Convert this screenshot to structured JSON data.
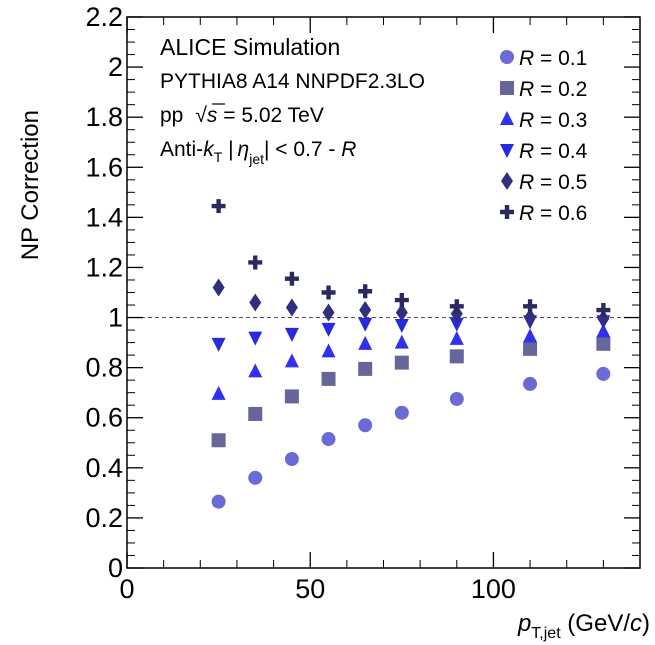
{
  "chart_data": {
    "type": "scatter",
    "ylabel": "NP Correction",
    "xlabel": {
      "var": "p",
      "sub": "T,jet",
      "unit_pre": " (GeV/",
      "unit_c": "c",
      "unit_post": ")"
    },
    "xlim": [
      0,
      140
    ],
    "ylim": [
      0,
      2.2
    ],
    "xticks": [
      0,
      50,
      100
    ],
    "yticks": [
      0,
      0.2,
      0.4,
      0.6,
      0.8,
      1,
      1.2,
      1.4,
      1.6,
      1.8,
      2,
      2.2
    ],
    "reference_line": 1,
    "annotations": {
      "title": "ALICE Simulation",
      "generator": "PYTHIA8 A14 NNPDF2.3LO",
      "energy_pp": "pp",
      "energy_sqrt": "√",
      "energy_s": "s",
      "energy_val": " = 5.02 TeV",
      "algo_pre": "Anti-",
      "algo_k": "k",
      "algo_ksub": "T",
      "algo_sep": "   |",
      "algo_eta": "η",
      "algo_etasub": "jet",
      "algo_cut": "| < 0.7 - ",
      "algo_R": "R"
    },
    "legend_position": "top-right",
    "x": [
      25,
      35,
      45,
      55,
      65,
      75,
      90,
      110,
      130
    ],
    "series": [
      {
        "name": "R = 0.1",
        "R_letter": "R",
        "R_rest": " = 0.1",
        "marker": "circle",
        "color": "#6b6bd6",
        "values": [
          0.265,
          0.36,
          0.435,
          0.515,
          0.57,
          0.62,
          0.675,
          0.735,
          0.775
        ]
      },
      {
        "name": "R = 0.2",
        "R_letter": "R",
        "R_rest": " = 0.2",
        "marker": "square",
        "color": "#66669a",
        "values": [
          0.51,
          0.615,
          0.685,
          0.755,
          0.795,
          0.82,
          0.845,
          0.875,
          0.895
        ]
      },
      {
        "name": "R = 0.3",
        "R_letter": "R",
        "R_rest": " = 0.3",
        "marker": "triangle-up",
        "color": "#3030ee",
        "values": [
          0.695,
          0.785,
          0.825,
          0.865,
          0.895,
          0.9,
          0.915,
          0.925,
          0.945
        ]
      },
      {
        "name": "R = 0.4",
        "R_letter": "R",
        "R_rest": " = 0.4",
        "marker": "triangle-down",
        "color": "#2a2add",
        "values": [
          0.895,
          0.92,
          0.935,
          0.955,
          0.975,
          0.97,
          0.975,
          0.985,
          0.985
        ]
      },
      {
        "name": "R = 0.5",
        "R_letter": "R",
        "R_rest": " = 0.5",
        "marker": "diamond",
        "color": "#30307e",
        "values": [
          1.12,
          1.06,
          1.04,
          1.02,
          1.03,
          1.02,
          1.015,
          1.0,
          0.995
        ]
      },
      {
        "name": "R = 0.6",
        "R_letter": "R",
        "R_rest": " = 0.6",
        "marker": "cross",
        "color": "#2a2a5e",
        "values": [
          1.445,
          1.22,
          1.155,
          1.1,
          1.105,
          1.07,
          1.045,
          1.045,
          1.03
        ]
      }
    ]
  }
}
